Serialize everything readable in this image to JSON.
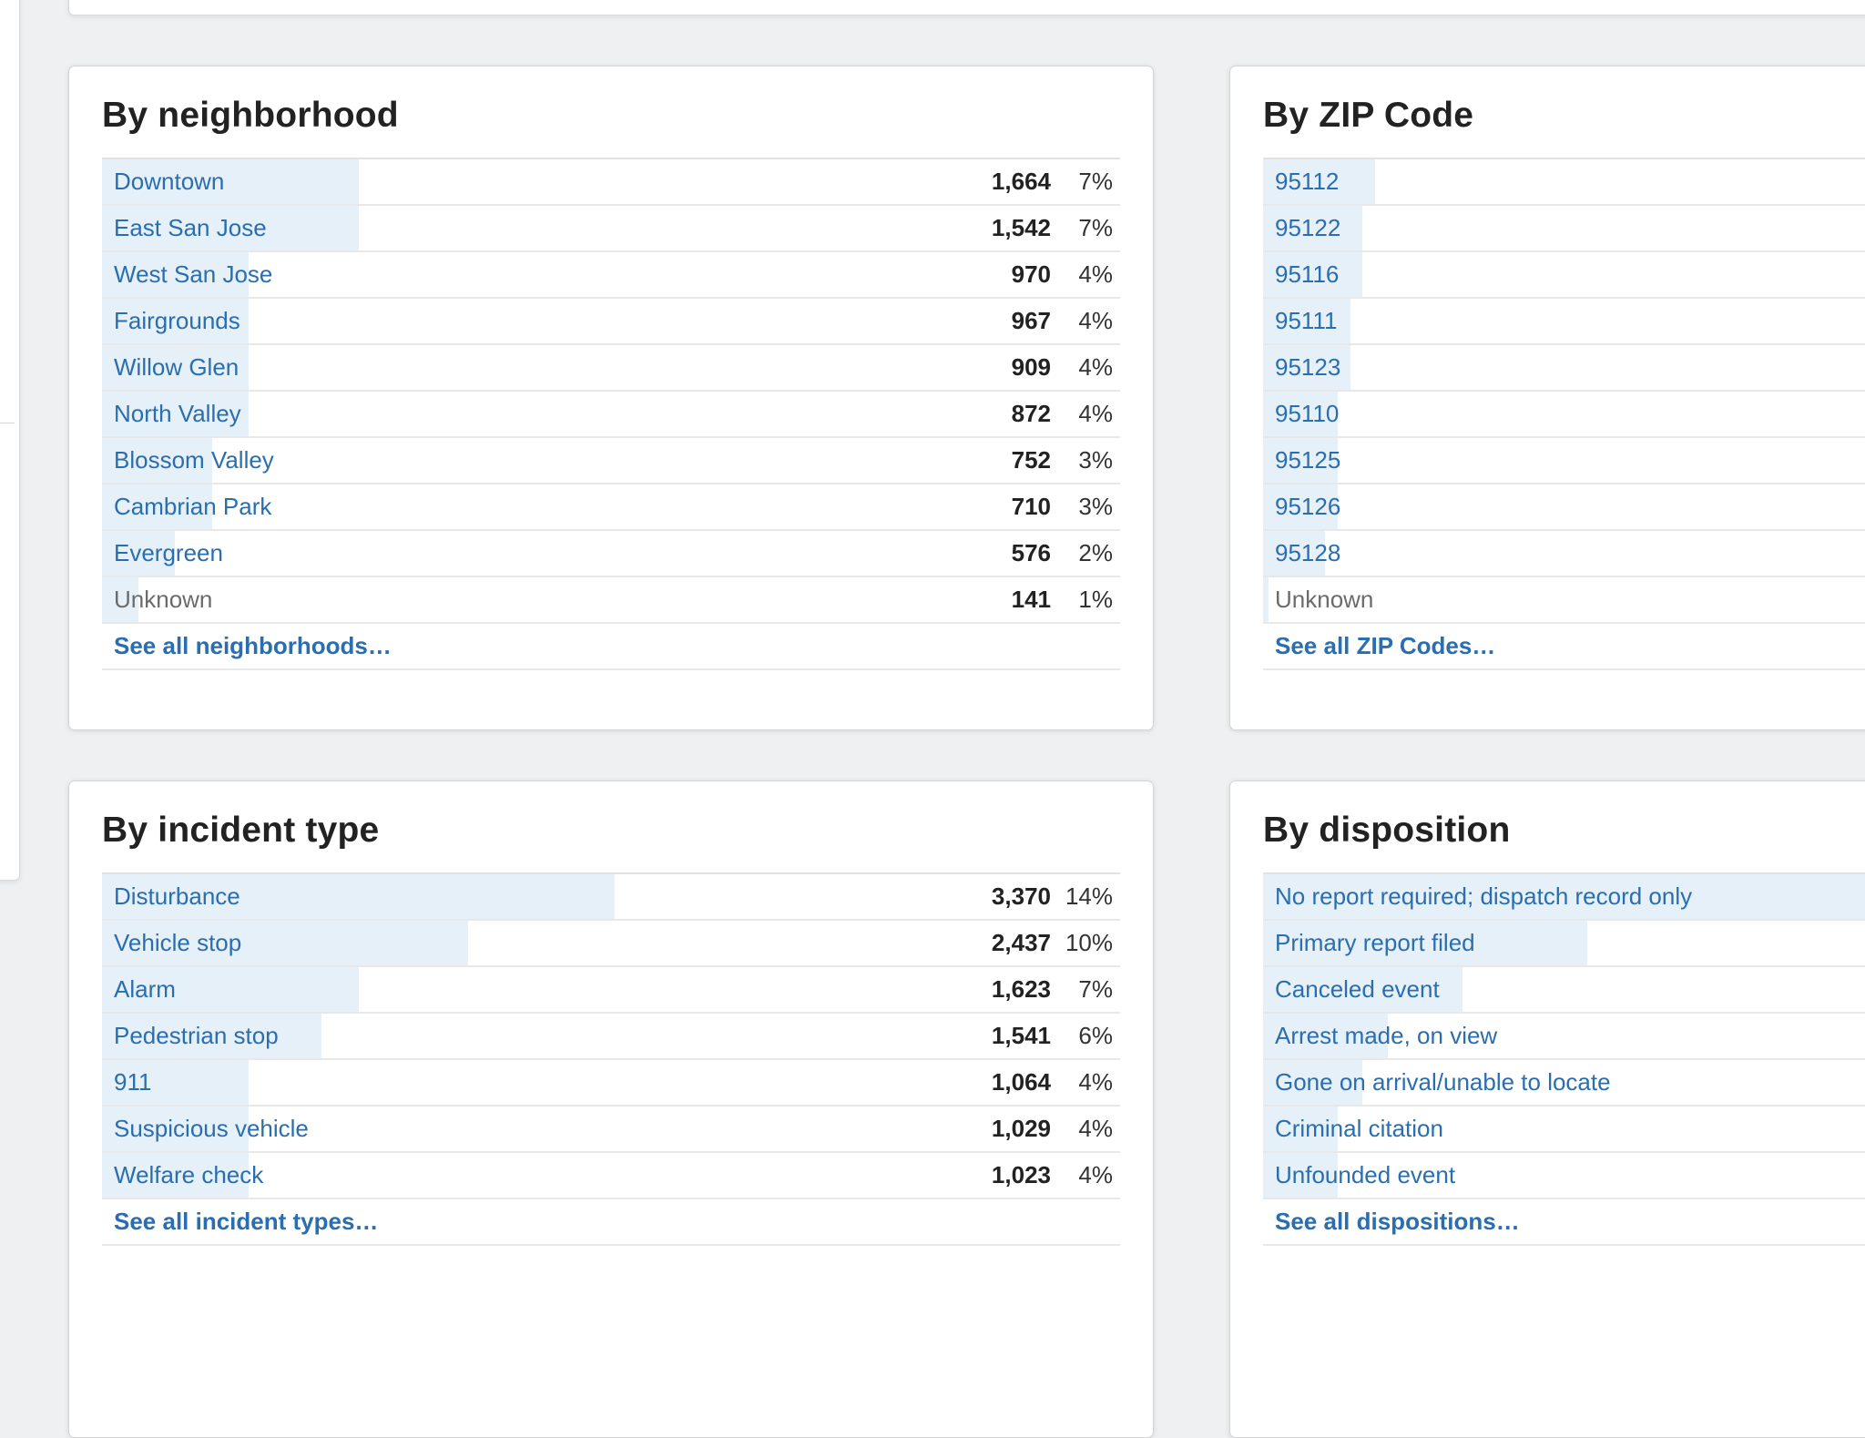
{
  "cards": [
    {
      "title": "By neighborhood",
      "rows": [
        {
          "label": "Downtown",
          "count": "1,664",
          "pct": "7%",
          "share": 0.07,
          "linked": true
        },
        {
          "label": "East San Jose",
          "count": "1,542",
          "pct": "7%",
          "share": 0.07,
          "linked": true
        },
        {
          "label": "West San Jose",
          "count": "970",
          "pct": "4%",
          "share": 0.04,
          "linked": true
        },
        {
          "label": "Fairgrounds",
          "count": "967",
          "pct": "4%",
          "share": 0.04,
          "linked": true
        },
        {
          "label": "Willow Glen",
          "count": "909",
          "pct": "4%",
          "share": 0.04,
          "linked": true
        },
        {
          "label": "North Valley",
          "count": "872",
          "pct": "4%",
          "share": 0.04,
          "linked": true
        },
        {
          "label": "Blossom Valley",
          "count": "752",
          "pct": "3%",
          "share": 0.03,
          "linked": true
        },
        {
          "label": "Cambrian Park",
          "count": "710",
          "pct": "3%",
          "share": 0.03,
          "linked": true
        },
        {
          "label": "Evergreen",
          "count": "576",
          "pct": "2%",
          "share": 0.02,
          "linked": true
        },
        {
          "label": "Unknown",
          "count": "141",
          "pct": "1%",
          "share": 0.01,
          "linked": false
        }
      ],
      "see_all": "See all neighborhoods…"
    },
    {
      "title": "By ZIP Code",
      "rows": [
        {
          "label": "95112",
          "share": 0.045,
          "linked": true
        },
        {
          "label": "95122",
          "share": 0.04,
          "linked": true
        },
        {
          "label": "95116",
          "share": 0.04,
          "linked": true
        },
        {
          "label": "95111",
          "share": 0.035,
          "linked": true
        },
        {
          "label": "95123",
          "share": 0.035,
          "linked": true
        },
        {
          "label": "95110",
          "share": 0.03,
          "linked": true
        },
        {
          "label": "95125",
          "share": 0.03,
          "linked": true
        },
        {
          "label": "95126",
          "share": 0.03,
          "linked": true
        },
        {
          "label": "95128",
          "share": 0.025,
          "linked": true
        },
        {
          "label": "Unknown",
          "share": 0.0,
          "linked": false
        }
      ],
      "see_all": "See all ZIP Codes…"
    },
    {
      "title": "By incident type",
      "rows": [
        {
          "label": "Disturbance",
          "count": "3,370",
          "pct": "14%",
          "share": 0.14,
          "linked": true
        },
        {
          "label": "Vehicle stop",
          "count": "2,437",
          "pct": "10%",
          "share": 0.1,
          "linked": true
        },
        {
          "label": "Alarm",
          "count": "1,623",
          "pct": "7%",
          "share": 0.07,
          "linked": true
        },
        {
          "label": "Pedestrian stop",
          "count": "1,541",
          "pct": "6%",
          "share": 0.06,
          "linked": true
        },
        {
          "label": "911",
          "count": "1,064",
          "pct": "4%",
          "share": 0.04,
          "linked": true
        },
        {
          "label": "Suspicious vehicle",
          "count": "1,029",
          "pct": "4%",
          "share": 0.04,
          "linked": true
        },
        {
          "label": "Welfare check",
          "count": "1,023",
          "pct": "4%",
          "share": 0.04,
          "linked": true
        }
      ],
      "see_all": "See all incident types…"
    },
    {
      "title": "By disposition",
      "rows": [
        {
          "label": "No report required; dispatch record only",
          "share": 0.48,
          "linked": true
        },
        {
          "label": "Primary report filed",
          "share": 0.13,
          "linked": true
        },
        {
          "label": "Canceled event",
          "share": 0.08,
          "linked": true
        },
        {
          "label": "Arrest made, on view",
          "share": 0.05,
          "linked": true
        },
        {
          "label": "Gone on arrival/unable to locate",
          "share": 0.04,
          "linked": true
        },
        {
          "label": "Criminal citation",
          "share": 0.03,
          "linked": true
        },
        {
          "label": "Unfounded event",
          "share": 0.03,
          "linked": true
        }
      ],
      "see_all": "See all dispositions…"
    }
  ],
  "colors": {
    "link": "#2a6eb0",
    "bar": "#e6f0f8",
    "muted": "#6b6b6b",
    "heading": "#222222"
  }
}
